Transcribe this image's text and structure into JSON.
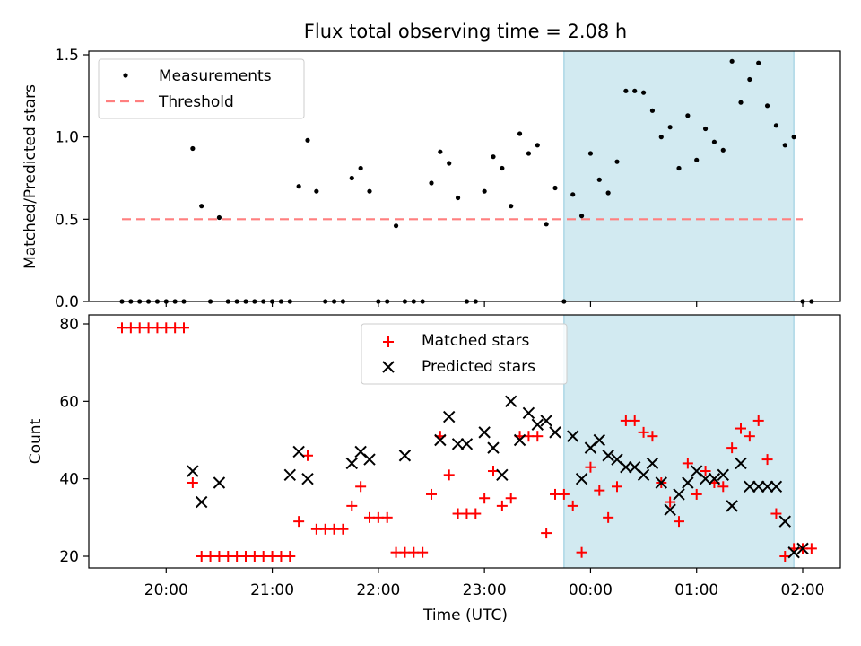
{
  "title": "Flux total observing time = 2.08 h",
  "chart_data": [
    {
      "type": "scatter",
      "title": "Flux total observing time = 2.08 h",
      "ylabel": "Matched/Predicted stars",
      "xlabel": "",
      "ylim": [
        0,
        1.5
      ],
      "yticks": [
        "0.0",
        "0.5",
        "1.0",
        "1.5"
      ],
      "threshold": 0.5,
      "legend_position": "top-left",
      "shaded_interval": [
        "23:45",
        "01:55"
      ],
      "shade_color": "#add8e6",
      "series": [
        {
          "name": "Measurements",
          "color": "#000000",
          "marker": "dot",
          "x": [
            "19:35",
            "19:40",
            "19:45",
            "19:50",
            "19:55",
            "20:00",
            "20:05",
            "20:10",
            "20:15",
            "20:20",
            "20:25",
            "20:30",
            "20:35",
            "20:40",
            "20:45",
            "20:50",
            "20:55",
            "21:00",
            "21:05",
            "21:10",
            "21:15",
            "21:20",
            "21:25",
            "21:30",
            "21:35",
            "21:40",
            "21:45",
            "21:50",
            "21:55",
            "22:00",
            "22:05",
            "22:10",
            "22:15",
            "22:20",
            "22:25",
            "22:30",
            "22:35",
            "22:40",
            "22:45",
            "22:50",
            "22:55",
            "23:00",
            "23:05",
            "23:10",
            "23:15",
            "23:20",
            "23:25",
            "23:30",
            "23:35",
            "23:40",
            "23:45",
            "23:50",
            "23:55",
            "24:00",
            "24:05",
            "24:10",
            "24:15",
            "24:20",
            "24:25",
            "24:30",
            "24:35",
            "24:40",
            "24:45",
            "24:50",
            "24:55",
            "25:00",
            "25:05",
            "25:10",
            "25:15",
            "25:20",
            "25:25",
            "25:30",
            "25:35",
            "25:40",
            "25:45",
            "25:50",
            "25:55",
            "26:00",
            "26:05"
          ],
          "y": [
            0,
            0,
            0,
            0,
            0,
            0,
            0,
            0,
            0.93,
            0.58,
            0,
            0.51,
            0,
            0,
            0,
            0,
            0,
            0,
            0,
            0,
            0.7,
            0.98,
            0.67,
            0,
            0,
            0,
            0.75,
            0.81,
            0.67,
            0,
            0,
            0.46,
            0,
            0,
            0,
            0.72,
            0.91,
            0.84,
            0.63,
            0,
            0,
            0.67,
            0.88,
            0.81,
            0.58,
            1.02,
            0.9,
            0.95,
            0.47,
            0.69,
            0,
            0.65,
            0.52,
            0.9,
            0.74,
            0.66,
            0.85,
            1.28,
            1.28,
            1.27,
            1.16,
            1.0,
            1.06,
            0.81,
            1.13,
            0.86,
            1.05,
            0.97,
            0.92,
            1.46,
            1.21,
            1.35,
            1.45,
            1.19,
            1.07,
            0.95,
            1.0,
            0,
            0
          ]
        },
        {
          "name": "Threshold",
          "color": "#ff6060",
          "style": "dashed",
          "x": [
            "19:35",
            "26:00"
          ],
          "y": [
            0.5,
            0.5
          ]
        }
      ]
    },
    {
      "type": "scatter",
      "xlabel": "Time (UTC)",
      "ylabel": "Count",
      "yticks": [
        "20",
        "40",
        "60",
        "80"
      ],
      "xticks": [
        "20:00",
        "21:00",
        "22:00",
        "23:00",
        "00:00",
        "01:00",
        "02:00"
      ],
      "legend_position": "top-center",
      "shaded_interval": [
        "23:45",
        "01:55"
      ],
      "series": [
        {
          "name": "Matched stars",
          "color": "#ff0000",
          "marker": "plus",
          "x": [
            "19:35",
            "19:40",
            "19:45",
            "19:50",
            "19:55",
            "20:00",
            "20:05",
            "20:10",
            "20:15",
            "20:20",
            "20:25",
            "20:30",
            "20:35",
            "20:40",
            "20:45",
            "20:50",
            "20:55",
            "21:00",
            "21:05",
            "21:10",
            "21:15",
            "21:20",
            "21:25",
            "21:30",
            "21:35",
            "21:40",
            "21:45",
            "21:50",
            "21:55",
            "22:00",
            "22:05",
            "22:10",
            "22:15",
            "22:20",
            "22:25",
            "22:30",
            "22:35",
            "22:40",
            "22:45",
            "22:50",
            "22:55",
            "23:00",
            "23:05",
            "23:10",
            "23:15",
            "23:20",
            "23:25",
            "23:30",
            "23:35",
            "23:40",
            "23:45",
            "23:50",
            "23:55",
            "24:00",
            "24:05",
            "24:10",
            "24:15",
            "24:20",
            "24:25",
            "24:30",
            "24:35",
            "24:40",
            "24:45",
            "24:50",
            "24:55",
            "25:00",
            "25:05",
            "25:10",
            "25:15",
            "25:20",
            "25:25",
            "25:30",
            "25:35",
            "25:40",
            "25:45",
            "25:50",
            "25:55",
            "26:00",
            "26:05"
          ],
          "y": [
            79,
            79,
            79,
            79,
            79,
            79,
            79,
            79,
            39,
            20,
            20,
            20,
            20,
            20,
            20,
            20,
            20,
            20,
            20,
            20,
            29,
            46,
            27,
            27,
            27,
            27,
            33,
            38,
            30,
            30,
            30,
            21,
            21,
            21,
            21,
            36,
            51,
            41,
            31,
            31,
            31,
            35,
            42,
            33,
            35,
            51,
            51,
            51,
            26,
            36,
            36,
            33,
            21,
            43,
            37,
            30,
            38,
            55,
            55,
            52,
            51,
            39,
            34,
            29,
            44,
            36,
            42,
            39,
            38,
            48,
            53,
            51,
            55,
            45,
            31,
            20,
            22,
            22,
            22
          ]
        },
        {
          "name": "Predicted stars",
          "color": "#000000",
          "marker": "x",
          "x": [
            "20:15",
            "20:20",
            "20:30",
            "21:10",
            "21:15",
            "21:20",
            "21:45",
            "21:50",
            "21:55",
            "22:15",
            "22:35",
            "22:40",
            "22:45",
            "22:50",
            "23:00",
            "23:05",
            "23:10",
            "23:15",
            "23:20",
            "23:25",
            "23:30",
            "23:35",
            "23:40",
            "23:50",
            "23:55",
            "24:00",
            "24:05",
            "24:10",
            "24:15",
            "24:20",
            "24:25",
            "24:30",
            "24:35",
            "24:40",
            "24:45",
            "24:50",
            "24:55",
            "25:00",
            "25:05",
            "25:10",
            "25:15",
            "25:20",
            "25:25",
            "25:30",
            "25:35",
            "25:40",
            "25:45",
            "25:50",
            "25:55",
            "26:00"
          ],
          "y": [
            42,
            34,
            39,
            41,
            47,
            40,
            44,
            47,
            45,
            46,
            50,
            56,
            49,
            49,
            52,
            48,
            41,
            60,
            50,
            57,
            54,
            55,
            52,
            51,
            40,
            48,
            50,
            46,
            45,
            43,
            43,
            41,
            44,
            39,
            32,
            36,
            39,
            42,
            40,
            40,
            41,
            33,
            44,
            38,
            38,
            38,
            38,
            29,
            21,
            22
          ]
        }
      ]
    }
  ]
}
